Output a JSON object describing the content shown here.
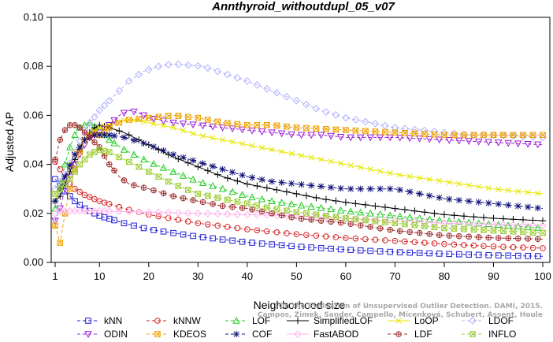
{
  "chart_data": {
    "type": "line",
    "title": "Annthyroid_withoutdupl_05_v07",
    "xlabel": "Neighborhood size",
    "ylabel": "Adjusted AP",
    "xlim": [
      1,
      100
    ],
    "ylim": [
      0.0,
      0.1
    ],
    "xticks": [
      1,
      10,
      20,
      30,
      40,
      50,
      60,
      70,
      80,
      90,
      100
    ],
    "yticks": [
      0.0,
      0.02,
      0.04,
      0.06,
      0.08,
      0.1
    ],
    "xtick_labels": [
      "1",
      "10",
      "20",
      "30",
      "40",
      "50",
      "60",
      "70",
      "80",
      "90",
      "100"
    ],
    "ytick_labels": [
      "0.00",
      "0.02",
      "0.04",
      "0.06",
      "0.08",
      "0.10"
    ],
    "grid": false,
    "legend_position": "bottom",
    "watermark_lines": [
      "Campos, Zimek, Sander, Campello, Micenková, Schubert, Assent, Houle",
      "On the Evaluation of Unsupervised Outlier Detection. DAMI, 2015."
    ],
    "series": [
      {
        "name": "kNN",
        "color": "#1f1fd6",
        "marker": "square",
        "dash": "4,3",
        "points": [
          [
            1,
            0.034
          ],
          [
            2,
            0.032
          ],
          [
            3,
            0.029
          ],
          [
            5,
            0.025
          ],
          [
            7,
            0.022
          ],
          [
            10,
            0.019
          ],
          [
            15,
            0.016
          ],
          [
            20,
            0.0135
          ],
          [
            30,
            0.0105
          ],
          [
            40,
            0.0082
          ],
          [
            50,
            0.0065
          ],
          [
            60,
            0.0052
          ],
          [
            70,
            0.0042
          ],
          [
            80,
            0.0035
          ],
          [
            90,
            0.0029
          ],
          [
            100,
            0.0025
          ]
        ]
      },
      {
        "name": "kNNW",
        "color": "#d62020",
        "marker": "circle",
        "dash": "4,3",
        "points": [
          [
            1,
            0.041
          ],
          [
            2,
            0.038
          ],
          [
            3,
            0.034
          ],
          [
            5,
            0.03
          ],
          [
            7,
            0.0275
          ],
          [
            10,
            0.025
          ],
          [
            15,
            0.022
          ],
          [
            20,
            0.0195
          ],
          [
            30,
            0.016
          ],
          [
            40,
            0.0135
          ],
          [
            50,
            0.0115
          ],
          [
            60,
            0.01
          ],
          [
            70,
            0.0088
          ],
          [
            80,
            0.0075
          ],
          [
            90,
            0.0065
          ],
          [
            100,
            0.0058
          ]
        ]
      },
      {
        "name": "LOF",
        "color": "#22cc22",
        "marker": "triangle",
        "dash": "4,3",
        "points": [
          [
            1,
            0.022
          ],
          [
            2,
            0.032
          ],
          [
            3,
            0.04
          ],
          [
            4,
            0.047
          ],
          [
            5,
            0.052
          ],
          [
            6,
            0.055
          ],
          [
            8,
            0.057
          ],
          [
            10,
            0.054
          ],
          [
            12,
            0.05
          ],
          [
            15,
            0.046
          ],
          [
            20,
            0.041
          ],
          [
            25,
            0.037
          ],
          [
            30,
            0.033
          ],
          [
            35,
            0.03
          ],
          [
            40,
            0.027
          ],
          [
            45,
            0.025
          ],
          [
            50,
            0.0235
          ],
          [
            60,
            0.021
          ],
          [
            70,
            0.019
          ],
          [
            80,
            0.017
          ],
          [
            90,
            0.0155
          ],
          [
            100,
            0.014
          ]
        ]
      },
      {
        "name": "SimplifiedLOF",
        "color": "#000000",
        "marker": "plus",
        "dash": "",
        "points": [
          [
            1,
            0.025
          ],
          [
            2,
            0.027
          ],
          [
            3,
            0.032
          ],
          [
            4,
            0.037
          ],
          [
            5,
            0.042
          ],
          [
            6,
            0.046
          ],
          [
            7,
            0.05
          ],
          [
            8,
            0.053
          ],
          [
            9,
            0.055
          ],
          [
            10,
            0.056
          ],
          [
            12,
            0.055
          ],
          [
            15,
            0.053
          ],
          [
            18,
            0.05
          ],
          [
            20,
            0.048
          ],
          [
            25,
            0.043
          ],
          [
            30,
            0.039
          ],
          [
            35,
            0.035
          ],
          [
            40,
            0.032
          ],
          [
            45,
            0.03
          ],
          [
            50,
            0.028
          ],
          [
            55,
            0.026
          ],
          [
            60,
            0.0245
          ],
          [
            70,
            0.022
          ],
          [
            80,
            0.0195
          ],
          [
            90,
            0.018
          ],
          [
            100,
            0.017
          ]
        ]
      },
      {
        "name": "LoOP",
        "color": "#e6e600",
        "marker": "x",
        "dash": "",
        "points": [
          [
            1,
            0.025
          ],
          [
            3,
            0.035
          ],
          [
            5,
            0.045
          ],
          [
            8,
            0.052
          ],
          [
            10,
            0.055
          ],
          [
            15,
            0.058
          ],
          [
            18,
            0.058
          ],
          [
            20,
            0.057
          ],
          [
            25,
            0.055
          ],
          [
            30,
            0.052
          ],
          [
            40,
            0.048
          ],
          [
            50,
            0.044
          ],
          [
            60,
            0.04
          ],
          [
            70,
            0.036
          ],
          [
            80,
            0.033
          ],
          [
            90,
            0.03
          ],
          [
            100,
            0.028
          ]
        ]
      },
      {
        "name": "LDOF",
        "color": "#b0b0ff",
        "marker": "diamond",
        "dash": "4,3",
        "points": [
          [
            1,
            0.03
          ],
          [
            3,
            0.036
          ],
          [
            5,
            0.045
          ],
          [
            7,
            0.054
          ],
          [
            10,
            0.062
          ],
          [
            13,
            0.068
          ],
          [
            16,
            0.074
          ],
          [
            19,
            0.078
          ],
          [
            22,
            0.08
          ],
          [
            25,
            0.081
          ],
          [
            28,
            0.0805
          ],
          [
            31,
            0.08
          ],
          [
            34,
            0.078
          ],
          [
            37,
            0.076
          ],
          [
            40,
            0.074
          ],
          [
            45,
            0.07
          ],
          [
            50,
            0.066
          ],
          [
            55,
            0.062
          ],
          [
            60,
            0.059
          ],
          [
            65,
            0.057
          ],
          [
            70,
            0.055
          ],
          [
            75,
            0.054
          ],
          [
            80,
            0.053
          ],
          [
            85,
            0.052
          ],
          [
            90,
            0.052
          ],
          [
            95,
            0.0515
          ],
          [
            100,
            0.051
          ]
        ]
      },
      {
        "name": "ODIN",
        "color": "#9a1fd6",
        "marker": "triangle-down",
        "dash": "4,3",
        "points": [
          [
            1,
            0.017
          ],
          [
            2,
            0.022
          ],
          [
            3,
            0.03
          ],
          [
            4,
            0.035
          ],
          [
            5,
            0.04
          ],
          [
            6,
            0.044
          ],
          [
            7,
            0.048
          ],
          [
            8,
            0.051
          ],
          [
            9,
            0.052
          ],
          [
            10,
            0.053
          ],
          [
            12,
            0.056
          ],
          [
            14,
            0.06
          ],
          [
            16,
            0.062
          ],
          [
            18,
            0.061
          ],
          [
            20,
            0.059
          ],
          [
            25,
            0.057
          ],
          [
            30,
            0.056
          ],
          [
            35,
            0.055
          ],
          [
            40,
            0.054
          ],
          [
            45,
            0.053
          ],
          [
            50,
            0.052
          ],
          [
            55,
            0.052
          ],
          [
            60,
            0.051
          ],
          [
            70,
            0.051
          ],
          [
            80,
            0.05
          ],
          [
            90,
            0.049
          ],
          [
            100,
            0.048
          ]
        ]
      },
      {
        "name": "KDEOS",
        "color": "#f0a000",
        "marker": "square-x",
        "dash": "4,3",
        "points": [
          [
            1,
            0.015
          ],
          [
            2,
            0.008
          ],
          [
            3,
            0.02
          ],
          [
            4,
            0.03
          ],
          [
            5,
            0.038
          ],
          [
            6,
            0.045
          ],
          [
            7,
            0.05
          ],
          [
            8,
            0.052
          ],
          [
            9,
            0.053
          ],
          [
            10,
            0.052
          ],
          [
            12,
            0.055
          ],
          [
            15,
            0.058
          ],
          [
            20,
            0.059
          ],
          [
            25,
            0.06
          ],
          [
            30,
            0.059
          ],
          [
            35,
            0.057
          ],
          [
            40,
            0.056
          ],
          [
            45,
            0.056
          ],
          [
            50,
            0.055
          ],
          [
            60,
            0.054
          ],
          [
            70,
            0.053
          ],
          [
            80,
            0.052
          ],
          [
            90,
            0.052
          ],
          [
            100,
            0.052
          ]
        ]
      },
      {
        "name": "COF",
        "color": "#10107a",
        "marker": "star",
        "dash": "4,3",
        "points": [
          [
            1,
            0.025
          ],
          [
            3,
            0.035
          ],
          [
            5,
            0.044
          ],
          [
            7,
            0.05
          ],
          [
            9,
            0.052
          ],
          [
            10,
            0.052
          ],
          [
            12,
            0.052
          ],
          [
            15,
            0.051
          ],
          [
            20,
            0.048
          ],
          [
            25,
            0.044
          ],
          [
            30,
            0.041
          ],
          [
            35,
            0.038
          ],
          [
            40,
            0.035
          ],
          [
            45,
            0.033
          ],
          [
            50,
            0.032
          ],
          [
            55,
            0.031
          ],
          [
            60,
            0.03
          ],
          [
            65,
            0.03
          ],
          [
            70,
            0.03
          ],
          [
            75,
            0.028
          ],
          [
            80,
            0.026
          ],
          [
            90,
            0.024
          ],
          [
            100,
            0.022
          ]
        ]
      },
      {
        "name": "FastABOD",
        "color": "#ffb3ee",
        "marker": "diamond",
        "dash": "",
        "points": [
          [
            1,
            0.02
          ],
          [
            2,
            0.021
          ],
          [
            3,
            0.021
          ],
          [
            5,
            0.021
          ],
          [
            8,
            0.021
          ],
          [
            10,
            0.021
          ],
          [
            20,
            0.0205
          ],
          [
            30,
            0.02
          ],
          [
            40,
            0.0195
          ],
          [
            50,
            0.019
          ],
          [
            60,
            0.018
          ],
          [
            70,
            0.017
          ],
          [
            80,
            0.016
          ],
          [
            90,
            0.0155
          ],
          [
            100,
            0.015
          ]
        ]
      },
      {
        "name": "LDF",
        "color": "#a03030",
        "marker": "circle-plus",
        "dash": "4,3",
        "points": [
          [
            1,
            0.042
          ],
          [
            2,
            0.05
          ],
          [
            3,
            0.054
          ],
          [
            4,
            0.056
          ],
          [
            5,
            0.056
          ],
          [
            6,
            0.055
          ],
          [
            7,
            0.053
          ],
          [
            8,
            0.051
          ],
          [
            10,
            0.047
          ],
          [
            12,
            0.04
          ],
          [
            14,
            0.035
          ],
          [
            16,
            0.032
          ],
          [
            20,
            0.03
          ],
          [
            25,
            0.027
          ],
          [
            30,
            0.025
          ],
          [
            35,
            0.023
          ],
          [
            40,
            0.022
          ],
          [
            45,
            0.02
          ],
          [
            50,
            0.018
          ],
          [
            60,
            0.016
          ],
          [
            70,
            0.013
          ],
          [
            80,
            0.011
          ],
          [
            90,
            0.01
          ],
          [
            100,
            0.0095
          ]
        ]
      },
      {
        "name": "INFLO",
        "color": "#9acd32",
        "marker": "square-x",
        "dash": "4,3",
        "points": [
          [
            1,
            0.028
          ],
          [
            2,
            0.03
          ],
          [
            3,
            0.032
          ],
          [
            4,
            0.034
          ],
          [
            5,
            0.037
          ],
          [
            6,
            0.04
          ],
          [
            7,
            0.042
          ],
          [
            8,
            0.044
          ],
          [
            10,
            0.046
          ],
          [
            12,
            0.045
          ],
          [
            15,
            0.042
          ],
          [
            20,
            0.037
          ],
          [
            25,
            0.032
          ],
          [
            30,
            0.028
          ],
          [
            35,
            0.026
          ],
          [
            40,
            0.024
          ],
          [
            45,
            0.022
          ],
          [
            50,
            0.0205
          ],
          [
            60,
            0.018
          ],
          [
            70,
            0.016
          ],
          [
            80,
            0.014
          ],
          [
            90,
            0.013
          ],
          [
            100,
            0.012
          ]
        ]
      }
    ],
    "legend_rows": [
      [
        "kNN",
        "kNNW",
        "LOF",
        "SimplifiedLOF",
        "LoOP",
        "LDOF"
      ],
      [
        "ODIN",
        "KDEOS",
        "COF",
        "FastABOD",
        "LDF",
        "INFLO"
      ]
    ]
  }
}
